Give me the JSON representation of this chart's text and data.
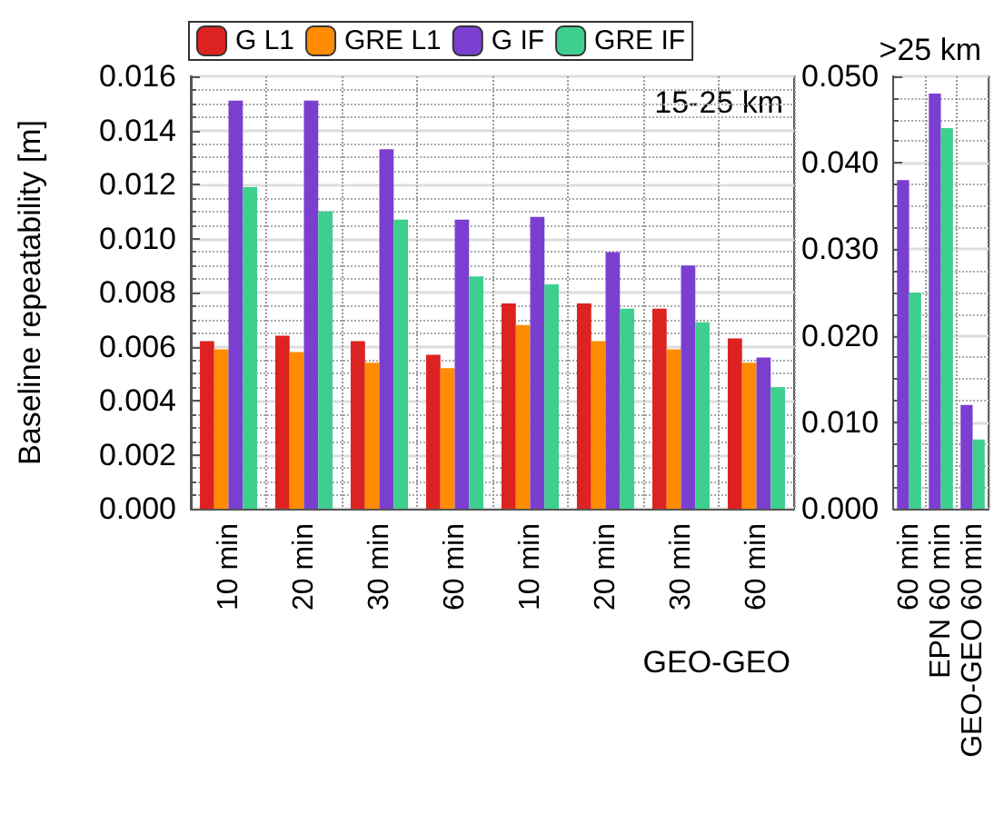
{
  "chart_data": [
    {
      "type": "bar",
      "ylabel": "Baseline repeatability [m]",
      "annotations": [
        "15-25 km",
        "GEO-GEO"
      ],
      "categories": [
        "10 min",
        "20 min",
        "30 min",
        "60 min",
        "10 min",
        "20 min",
        "30 min",
        "60 min"
      ],
      "series": [
        {
          "name": "G L1",
          "color": "#dd2222",
          "values": [
            0.0062,
            0.0064,
            0.0062,
            0.0057,
            0.0076,
            0.0076,
            0.0074,
            0.0063
          ]
        },
        {
          "name": "GRE L1",
          "color": "#ff8c00",
          "values": [
            0.0059,
            0.0058,
            0.0054,
            0.0052,
            0.0068,
            0.0062,
            0.0059,
            0.0054
          ]
        },
        {
          "name": "G IF",
          "color": "#7b3fd0",
          "values": [
            0.0151,
            0.0151,
            0.0133,
            0.0107,
            0.0108,
            0.0095,
            0.009,
            0.0056
          ]
        },
        {
          "name": "GRE IF",
          "color": "#3ecf8e",
          "values": [
            0.0119,
            0.011,
            0.0107,
            0.0086,
            0.0083,
            0.0074,
            0.0069,
            0.0045
          ]
        }
      ],
      "ylim": [
        0,
        0.016
      ],
      "yticks": [
        {
          "value": 0,
          "label": "0.000"
        },
        {
          "value": 0.002,
          "label": "0.002"
        },
        {
          "value": 0.004,
          "label": "0.004"
        },
        {
          "value": 0.006,
          "label": "0.006"
        },
        {
          "value": 0.008,
          "label": "0.008"
        },
        {
          "value": 0.01,
          "label": "0.010"
        },
        {
          "value": 0.012,
          "label": "0.012"
        },
        {
          "value": 0.014,
          "label": "0.014"
        },
        {
          "value": 0.016,
          "label": "0.016"
        }
      ],
      "grid": true,
      "legend": "top"
    },
    {
      "type": "bar",
      "title": ">25 km",
      "categories": [
        "60 min",
        "EPN 60 min",
        "GEO-GEO 60 min"
      ],
      "series": [
        {
          "color": "#7b3fd0",
          "values": [
            0.038,
            0.048,
            0.012
          ]
        },
        {
          "color": "#3ecf8e",
          "values": [
            0.025,
            0.044,
            0.008
          ]
        }
      ],
      "ylim": [
        0,
        0.05
      ],
      "yticks": [
        {
          "value": 0,
          "label": "0.000"
        },
        {
          "value": 0.01,
          "label": "0.010"
        },
        {
          "value": 0.02,
          "label": "0.020"
        },
        {
          "value": 0.03,
          "label": "0.030"
        },
        {
          "value": 0.04,
          "label": "0.040"
        },
        {
          "value": 0.05,
          "label": "0.050"
        }
      ],
      "grid": true
    }
  ]
}
